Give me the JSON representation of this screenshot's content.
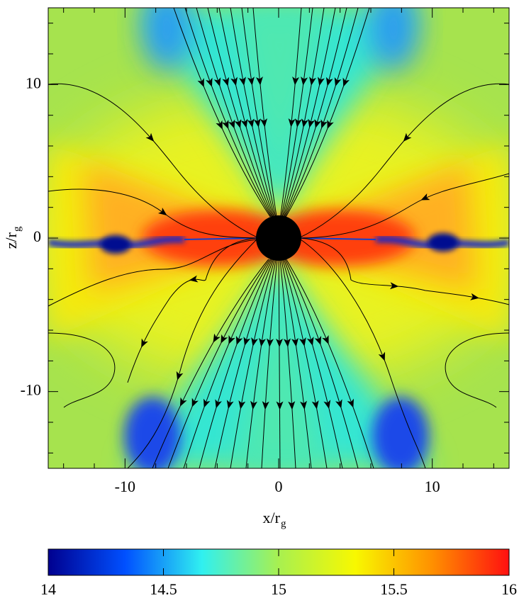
{
  "chart_data": {
    "type": "heatmap",
    "xlabel": [
      "x/r",
      "g"
    ],
    "ylabel": [
      "z/r",
      "g"
    ],
    "xlim": [
      -15,
      15
    ],
    "ylim": [
      -15,
      15
    ],
    "xticks": [
      -10,
      0,
      10
    ],
    "yticks": [
      -10,
      0,
      10
    ],
    "minor_ticks": [
      -14,
      -12,
      -8,
      -6,
      -4,
      -2,
      2,
      4,
      6,
      8,
      12,
      14
    ],
    "colorbar": {
      "lim": [
        14,
        16
      ],
      "ticks": [
        14,
        14.5,
        15,
        15.5,
        16
      ],
      "colormap": [
        "#00008f",
        "#0050ff",
        "#30f0f0",
        "#a8f050",
        "#f8f800",
        "#ff9000",
        "#ff1010"
      ]
    }
  }
}
